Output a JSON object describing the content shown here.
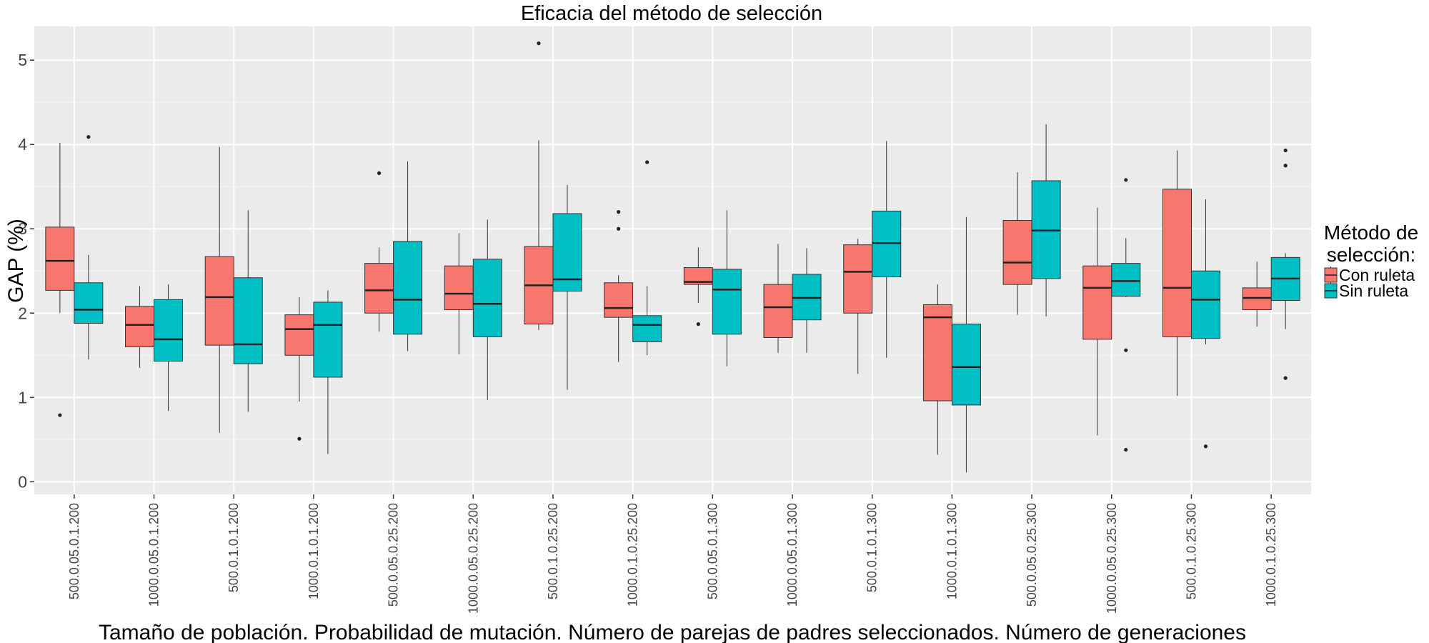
{
  "chart_data": {
    "type": "boxplot",
    "title": "Eficacia del método de selección",
    "xlabel": "Tamaño de población. Probabilidad de mutación. Número de parejas de padres seleccionados. Número de generaciones",
    "ylabel": "GAP (%)",
    "ylim": [
      -0.15,
      5.4
    ],
    "yticks": [
      0,
      1,
      2,
      3,
      4,
      5
    ],
    "grid": true,
    "legend": {
      "title_line1": "Método de",
      "title_line2": "selección:",
      "position": "right"
    },
    "categories": [
      "500.0.05.0.1.200",
      "1000.0.05.0.1.200",
      "500.0.1.0.1.200",
      "1000.0.1.0.1.200",
      "500.0.05.0.25.200",
      "1000.0.05.0.25.200",
      "500.0.1.0.25.200",
      "1000.0.1.0.25.200",
      "500.0.05.0.1.300",
      "1000.0.05.0.1.300",
      "500.0.1.0.1.300",
      "1000.0.1.0.1.300",
      "500.0.05.0.25.300",
      "1000.0.05.0.25.300",
      "500.0.1.0.25.300",
      "1000.0.1.0.25.300"
    ],
    "series": [
      {
        "name": "Con ruleta",
        "color": "#F8766D",
        "boxes": [
          {
            "min": 2.0,
            "q1": 2.27,
            "median": 2.62,
            "q3": 3.02,
            "max": 4.02,
            "outliers": [
              0.79
            ]
          },
          {
            "min": 1.35,
            "q1": 1.6,
            "median": 1.86,
            "q3": 2.08,
            "max": 2.32,
            "outliers": []
          },
          {
            "min": 0.58,
            "q1": 1.62,
            "median": 2.19,
            "q3": 2.67,
            "max": 3.97,
            "outliers": []
          },
          {
            "min": 0.95,
            "q1": 1.5,
            "median": 1.81,
            "q3": 1.98,
            "max": 2.19,
            "outliers": [
              0.51
            ]
          },
          {
            "min": 1.78,
            "q1": 2.0,
            "median": 2.27,
            "q3": 2.59,
            "max": 2.78,
            "outliers": [
              3.66
            ]
          },
          {
            "min": 1.51,
            "q1": 2.04,
            "median": 2.23,
            "q3": 2.56,
            "max": 2.95,
            "outliers": []
          },
          {
            "min": 1.8,
            "q1": 1.87,
            "median": 2.33,
            "q3": 2.79,
            "max": 4.05,
            "outliers": [
              5.2
            ]
          },
          {
            "min": 1.42,
            "q1": 1.95,
            "median": 2.06,
            "q3": 2.36,
            "max": 2.45,
            "outliers": [
              3.2,
              3.0
            ]
          },
          {
            "min": 2.12,
            "q1": 2.34,
            "median": 2.37,
            "q3": 2.54,
            "max": 2.78,
            "outliers": [
              1.87
            ]
          },
          {
            "min": 1.53,
            "q1": 1.71,
            "median": 2.07,
            "q3": 2.34,
            "max": 2.82,
            "outliers": []
          },
          {
            "min": 1.28,
            "q1": 2.0,
            "median": 2.49,
            "q3": 2.81,
            "max": 2.88,
            "outliers": []
          },
          {
            "min": 0.32,
            "q1": 0.96,
            "median": 1.95,
            "q3": 2.1,
            "max": 2.34,
            "outliers": []
          },
          {
            "min": 1.98,
            "q1": 2.34,
            "median": 2.6,
            "q3": 3.1,
            "max": 3.67,
            "outliers": []
          },
          {
            "min": 0.55,
            "q1": 1.69,
            "median": 2.3,
            "q3": 2.56,
            "max": 3.25,
            "outliers": []
          },
          {
            "min": 1.02,
            "q1": 1.72,
            "median": 2.3,
            "q3": 3.47,
            "max": 3.93,
            "outliers": []
          },
          {
            "min": 1.84,
            "q1": 2.04,
            "median": 2.18,
            "q3": 2.3,
            "max": 2.61,
            "outliers": []
          }
        ]
      },
      {
        "name": "Sin ruleta",
        "color": "#00BFC4",
        "boxes": [
          {
            "min": 1.45,
            "q1": 1.88,
            "median": 2.04,
            "q3": 2.36,
            "max": 2.69,
            "outliers": [
              4.09
            ]
          },
          {
            "min": 0.84,
            "q1": 1.43,
            "median": 1.69,
            "q3": 2.16,
            "max": 2.34,
            "outliers": []
          },
          {
            "min": 0.83,
            "q1": 1.4,
            "median": 1.63,
            "q3": 2.42,
            "max": 3.22,
            "outliers": []
          },
          {
            "min": 0.33,
            "q1": 1.24,
            "median": 1.86,
            "q3": 2.13,
            "max": 2.27,
            "outliers": []
          },
          {
            "min": 1.55,
            "q1": 1.75,
            "median": 2.16,
            "q3": 2.85,
            "max": 3.8,
            "outliers": []
          },
          {
            "min": 0.97,
            "q1": 1.72,
            "median": 2.11,
            "q3": 2.64,
            "max": 3.11,
            "outliers": []
          },
          {
            "min": 1.09,
            "q1": 2.26,
            "median": 2.4,
            "q3": 3.18,
            "max": 3.52,
            "outliers": []
          },
          {
            "min": 1.5,
            "q1": 1.66,
            "median": 1.86,
            "q3": 1.97,
            "max": 2.32,
            "outliers": [
              3.79
            ]
          },
          {
            "min": 1.37,
            "q1": 1.75,
            "median": 2.28,
            "q3": 2.52,
            "max": 3.22,
            "outliers": []
          },
          {
            "min": 1.53,
            "q1": 1.92,
            "median": 2.18,
            "q3": 2.46,
            "max": 2.77,
            "outliers": []
          },
          {
            "min": 1.47,
            "q1": 2.43,
            "median": 2.83,
            "q3": 3.21,
            "max": 4.04,
            "outliers": []
          },
          {
            "min": 0.11,
            "q1": 0.91,
            "median": 1.36,
            "q3": 1.87,
            "max": 3.14,
            "outliers": []
          },
          {
            "min": 1.96,
            "q1": 2.41,
            "median": 2.98,
            "q3": 3.57,
            "max": 4.24,
            "outliers": []
          },
          {
            "min": 2.19,
            "q1": 2.2,
            "median": 2.38,
            "q3": 2.59,
            "max": 2.89,
            "outliers": [
              3.58,
              1.56,
              0.38
            ]
          },
          {
            "min": 1.63,
            "q1": 1.7,
            "median": 2.16,
            "q3": 2.5,
            "max": 3.35,
            "outliers": [
              0.42
            ]
          },
          {
            "min": 1.81,
            "q1": 2.15,
            "median": 2.41,
            "q3": 2.66,
            "max": 2.71,
            "outliers": [
              3.93,
              3.75,
              1.23
            ]
          }
        ]
      }
    ]
  }
}
